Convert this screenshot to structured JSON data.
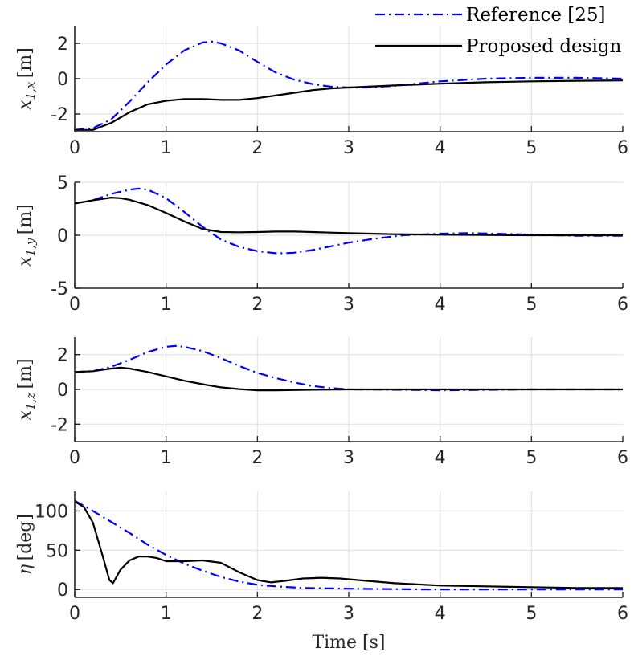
{
  "chart_data": [
    {
      "type": "line",
      "ylabel": {
        "sym": "x",
        "sub": "1,x",
        "unit": "[m]"
      },
      "xlim": [
        0,
        6
      ],
      "ylim": [
        -3,
        3
      ],
      "xticks": [
        0,
        1,
        2,
        3,
        4,
        5,
        6
      ],
      "yticks": [
        2,
        0,
        -2
      ],
      "grid": true,
      "legend": "top-right",
      "series": [
        {
          "name": "Reference [25]",
          "color": "#0000ff",
          "style": "dashdot",
          "x": [
            0,
            0.2,
            0.4,
            0.6,
            0.8,
            1.0,
            1.2,
            1.4,
            1.5,
            1.6,
            1.8,
            2.0,
            2.2,
            2.4,
            2.6,
            2.8,
            3.0,
            3.2,
            3.5,
            4.0,
            4.5,
            5.0,
            5.5,
            6.0
          ],
          "y": [
            -2.9,
            -2.8,
            -2.3,
            -1.3,
            -0.2,
            0.8,
            1.6,
            2.05,
            2.1,
            2.0,
            1.6,
            0.95,
            0.35,
            -0.05,
            -0.3,
            -0.45,
            -0.5,
            -0.5,
            -0.4,
            -0.15,
            0.0,
            0.05,
            0.05,
            0.0
          ]
        },
        {
          "name": "Proposed design",
          "color": "#000000",
          "style": "solid",
          "x": [
            0,
            0.2,
            0.4,
            0.6,
            0.8,
            1.0,
            1.2,
            1.4,
            1.6,
            1.8,
            2.0,
            2.2,
            2.4,
            2.6,
            2.8,
            3.0,
            3.5,
            4.0,
            4.5,
            5.0,
            5.5,
            6.0
          ],
          "y": [
            -2.9,
            -2.9,
            -2.5,
            -1.9,
            -1.45,
            -1.25,
            -1.15,
            -1.15,
            -1.2,
            -1.2,
            -1.1,
            -0.95,
            -0.8,
            -0.65,
            -0.55,
            -0.5,
            -0.38,
            -0.28,
            -0.2,
            -0.15,
            -0.12,
            -0.1
          ]
        }
      ]
    },
    {
      "type": "line",
      "ylabel": {
        "sym": "x",
        "sub": "1,y",
        "unit": "[m]"
      },
      "xlim": [
        0,
        6
      ],
      "ylim": [
        -5,
        5
      ],
      "xticks": [
        0,
        1,
        2,
        3,
        4,
        5,
        6
      ],
      "yticks": [
        5,
        0,
        -5
      ],
      "grid": true,
      "series": [
        {
          "name": "Reference [25]",
          "color": "#0000ff",
          "style": "dashdot",
          "x": [
            0,
            0.2,
            0.4,
            0.6,
            0.7,
            0.8,
            1.0,
            1.2,
            1.4,
            1.6,
            1.8,
            2.0,
            2.2,
            2.3,
            2.4,
            2.6,
            2.8,
            3.0,
            3.3,
            3.6,
            4.0,
            4.3,
            4.6,
            5.0,
            5.5,
            6.0
          ],
          "y": [
            3.0,
            3.3,
            3.9,
            4.3,
            4.4,
            4.3,
            3.5,
            2.2,
            0.8,
            -0.4,
            -1.1,
            -1.5,
            -1.7,
            -1.7,
            -1.65,
            -1.4,
            -1.05,
            -0.7,
            -0.3,
            0.0,
            0.15,
            0.2,
            0.15,
            0.05,
            -0.05,
            -0.05
          ]
        },
        {
          "name": "Proposed design",
          "color": "#000000",
          "style": "solid",
          "x": [
            0,
            0.2,
            0.4,
            0.5,
            0.6,
            0.8,
            1.0,
            1.2,
            1.4,
            1.6,
            1.8,
            2.0,
            2.2,
            2.4,
            2.6,
            2.8,
            3.0,
            3.5,
            4.0,
            4.5,
            5.0,
            6.0
          ],
          "y": [
            3.0,
            3.3,
            3.55,
            3.5,
            3.35,
            2.85,
            2.1,
            1.3,
            0.6,
            0.3,
            0.28,
            0.3,
            0.35,
            0.35,
            0.3,
            0.25,
            0.2,
            0.1,
            0.05,
            0.02,
            0.0,
            0.0
          ]
        }
      ]
    },
    {
      "type": "line",
      "ylabel": {
        "sym": "x",
        "sub": "1,z",
        "unit": "[m]"
      },
      "xlim": [
        0,
        6
      ],
      "ylim": [
        -3,
        3
      ],
      "xticks": [
        0,
        1,
        2,
        3,
        4,
        5,
        6
      ],
      "yticks": [
        2,
        0,
        -2
      ],
      "grid": true,
      "series": [
        {
          "name": "Reference [25]",
          "color": "#0000ff",
          "style": "dashdot",
          "x": [
            0,
            0.2,
            0.4,
            0.6,
            0.8,
            1.0,
            1.1,
            1.2,
            1.4,
            1.6,
            1.8,
            2.0,
            2.2,
            2.4,
            2.6,
            2.8,
            3.0,
            3.5,
            4.0,
            4.5,
            5.0,
            6.0
          ],
          "y": [
            1.0,
            1.05,
            1.3,
            1.7,
            2.15,
            2.45,
            2.5,
            2.45,
            2.2,
            1.8,
            1.35,
            0.95,
            0.65,
            0.4,
            0.2,
            0.08,
            0.0,
            -0.02,
            -0.05,
            -0.03,
            0.0,
            0.0
          ]
        },
        {
          "name": "Proposed design",
          "color": "#000000",
          "style": "solid",
          "x": [
            0,
            0.2,
            0.4,
            0.5,
            0.6,
            0.8,
            1.0,
            1.2,
            1.4,
            1.6,
            1.8,
            2.0,
            2.2,
            2.6,
            3.0,
            4.0,
            5.0,
            6.0
          ],
          "y": [
            1.0,
            1.05,
            1.2,
            1.25,
            1.2,
            1.0,
            0.75,
            0.5,
            0.3,
            0.12,
            0.02,
            -0.05,
            -0.05,
            -0.02,
            0.0,
            0.0,
            0.0,
            0.0
          ]
        }
      ]
    },
    {
      "type": "line",
      "ylabel": {
        "sym": "η",
        "sub": "",
        "unit": "[deg]"
      },
      "xlabel": "Time [s]",
      "xlim": [
        0,
        6
      ],
      "ylim": [
        -10,
        125
      ],
      "xticks": [
        0,
        1,
        2,
        3,
        4,
        5,
        6
      ],
      "yticks": [
        100,
        50,
        0
      ],
      "grid": true,
      "series": [
        {
          "name": "Reference [25]",
          "color": "#0000ff",
          "style": "dashdot",
          "x": [
            0,
            0.2,
            0.4,
            0.6,
            0.8,
            1.0,
            1.2,
            1.4,
            1.6,
            1.8,
            2.0,
            2.2,
            2.5,
            3.0,
            3.5,
            4.0,
            4.5,
            5.0,
            5.5,
            6.0
          ],
          "y": [
            113,
            100,
            86,
            72,
            57,
            44,
            33,
            24,
            16,
            10,
            6,
            4,
            2,
            1,
            0.5,
            0,
            0,
            0,
            0,
            0
          ]
        },
        {
          "name": "Proposed design",
          "color": "#000000",
          "style": "solid",
          "x": [
            0,
            0.1,
            0.2,
            0.3,
            0.38,
            0.42,
            0.5,
            0.6,
            0.7,
            0.8,
            0.9,
            1.0,
            1.2,
            1.4,
            1.6,
            1.8,
            2.0,
            2.15,
            2.3,
            2.5,
            2.7,
            2.9,
            3.1,
            3.5,
            4.0,
            4.5,
            5.0,
            5.5,
            6.0
          ],
          "y": [
            112,
            105,
            85,
            45,
            12,
            8,
            25,
            37,
            42,
            42,
            40,
            36,
            36,
            37,
            34,
            22,
            12,
            9,
            11,
            14,
            15,
            14,
            12,
            8,
            5,
            4,
            3,
            2,
            2
          ]
        }
      ]
    }
  ]
}
